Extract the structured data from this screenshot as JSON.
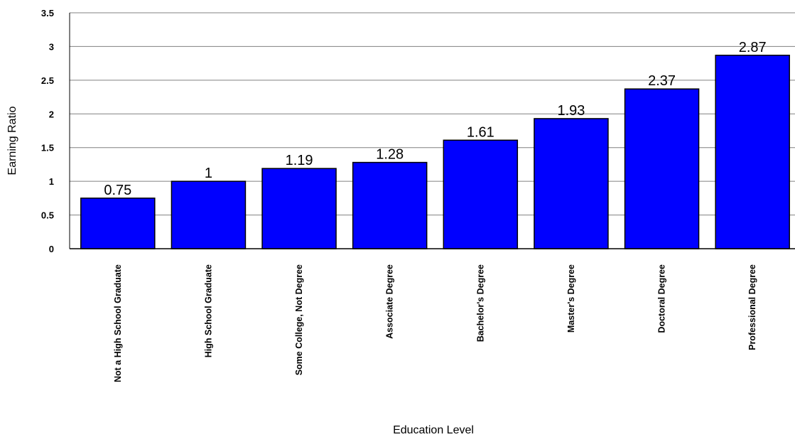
{
  "chart_data": {
    "type": "bar",
    "categories": [
      "Not a High School Graduate",
      "High School Graduate",
      "Some College, Not Degree",
      "Associate Degree",
      "Bachelor's Degree",
      "Master's Degree",
      "Doctoral Degree",
      "Professional Degree"
    ],
    "values": [
      0.75,
      1,
      1.19,
      1.28,
      1.61,
      1.93,
      2.37,
      2.87
    ],
    "value_labels": [
      "0.75",
      "1",
      "1.19",
      "1.28",
      "1.61",
      "1.93",
      "2.37",
      "2.87"
    ],
    "y_ticks": [
      "0",
      "0.5",
      "1",
      "1.5",
      "2",
      "2.5",
      "3",
      "3.5"
    ],
    "xlabel": "Education Level",
    "ylabel": "Earning Ratio",
    "ylim": [
      0,
      3.5
    ],
    "grid": true,
    "bar_color": "#0000ff",
    "bar_edge_color": "#000000",
    "grid_color": "#808080"
  }
}
